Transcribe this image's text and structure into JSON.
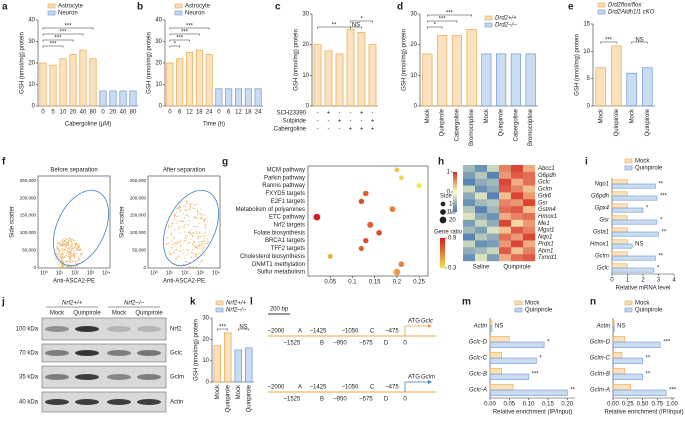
{
  "chart_data": [
    {
      "label": "a",
      "type": "bar",
      "ylabel": "GSH (nmol/mg) protein",
      "xlabel": "Cabergoline (μM)",
      "categories": [
        "0",
        "5",
        "10",
        "20",
        "40",
        "80",
        "0",
        "20",
        "40",
        "80"
      ],
      "series": [
        {
          "name": "Astrocyte",
          "color": "#f0a848",
          "values": [
            20,
            19,
            22,
            24,
            26,
            22,
            null,
            null,
            null,
            null
          ]
        },
        {
          "name": "Neuron",
          "color": "#6b9bd8",
          "values": [
            null,
            null,
            null,
            null,
            null,
            null,
            7,
            7,
            7,
            7
          ]
        }
      ],
      "ylim": [
        0,
        40
      ],
      "yticks": [
        0,
        10,
        20,
        30,
        40
      ],
      "legend": "upper left",
      "annotations": [
        "***",
        "***",
        "***",
        "***"
      ]
    },
    {
      "label": "b",
      "type": "bar",
      "ylabel": "GSH (nmol/mg) protein",
      "xlabel": "Time (h)",
      "categories": [
        "0",
        "6",
        "12",
        "18",
        "24",
        "0",
        "6",
        "12",
        "18",
        "24"
      ],
      "series": [
        {
          "name": "Astrocyte",
          "color": "#f0a848",
          "values": [
            20,
            22,
            25,
            26,
            24,
            null,
            null,
            null,
            null,
            null
          ]
        },
        {
          "name": "Neuron",
          "color": "#6b9bd8",
          "values": [
            null,
            null,
            null,
            null,
            null,
            8,
            8,
            8,
            8,
            8
          ]
        }
      ],
      "ylim": [
        0,
        40
      ],
      "yticks": [
        0,
        10,
        20,
        30,
        40
      ],
      "legend": "upper left",
      "annotations": [
        "*",
        "***",
        "***",
        "***"
      ]
    },
    {
      "label": "c",
      "type": "bar",
      "ylabel": "GSH (nmol/mg) protein",
      "series": [
        {
          "color": "#f0a848",
          "values": [
            20,
            18,
            17,
            25,
            24,
            20
          ]
        }
      ],
      "rows": [
        {
          "name": "SCH23390",
          "signs": [
            "-",
            "+",
            "-",
            "-",
            "+",
            "-"
          ]
        },
        {
          "name": "Sulpiride",
          "signs": [
            "-",
            "-",
            "+",
            "-",
            "-",
            "+"
          ]
        },
        {
          "name": "Cabergoline",
          "signs": [
            "-",
            "-",
            "-",
            "+",
            "+",
            "+"
          ]
        }
      ],
      "ylim": [
        0,
        30
      ],
      "yticks": [
        0,
        10,
        20,
        30
      ],
      "annotations": [
        "**",
        "NS",
        "*"
      ]
    },
    {
      "label": "d",
      "type": "bar",
      "ylabel": "GSH (nmol/mg) protein",
      "categories": [
        "Mock",
        "Quinpirole",
        "Cabergoline",
        "Bromocriptine",
        "Mock",
        "Quinpirole",
        "Cabergoline",
        "Bromocriptine"
      ],
      "series": [
        {
          "name": "Drd2+/+",
          "color": "#f0a848",
          "values": [
            17,
            23,
            23,
            25,
            null,
            null,
            null,
            null
          ]
        },
        {
          "name": "Drd2−/−",
          "color": "#6b9bd8",
          "values": [
            null,
            null,
            null,
            null,
            17,
            17,
            17,
            17
          ]
        }
      ],
      "ylim": [
        0,
        30
      ],
      "yticks": [
        0,
        10,
        20,
        30
      ],
      "legend": "upper right",
      "annotations": [
        "*",
        "***",
        "***"
      ]
    },
    {
      "label": "e",
      "type": "bar",
      "ylabel": "GSH (nmol/mg) protein",
      "categories": [
        "Mock",
        "Quinpirole",
        "Mock",
        "Quinpirole"
      ],
      "series": [
        {
          "name": "Drd2flox/flox",
          "color": "#f0a848",
          "values": [
            7,
            11,
            null,
            null
          ]
        },
        {
          "name": "Drd2Aldh1l1 cKO",
          "color": "#6b9bd8",
          "values": [
            null,
            null,
            6,
            7
          ]
        }
      ],
      "ylim": [
        0,
        15
      ],
      "yticks": [
        0,
        5,
        10,
        15
      ],
      "legend": "top",
      "annotations": [
        "***",
        "NS"
      ]
    },
    {
      "label": "g",
      "type": "bubble",
      "categories": [
        "MCM pathway",
        "Parkin pathway",
        "Rannis pathway",
        "FXYD5 targets",
        "E2F1 targets",
        "Metabolism of polyamines",
        "ETC pathway",
        "Nrf2 targets",
        "Folate biosynthesis",
        "BRCA1 targets",
        "TFF2 targets",
        "Cholesterol biosynthesis",
        "DNMT1 methylation",
        "Sulfur metabolism"
      ],
      "x": [
        0.2,
        0.21,
        0.25,
        0.13,
        0.12,
        0.19,
        0.02,
        0.14,
        0.16,
        0.13,
        0.12,
        0.05,
        0.21,
        0.2
      ],
      "sizes": [
        10,
        10,
        12,
        14,
        13,
        15,
        20,
        16,
        14,
        13,
        12,
        11,
        14,
        20
      ],
      "ratios": [
        0.4,
        0.35,
        0.3,
        0.7,
        0.75,
        0.6,
        0.9,
        0.7,
        0.75,
        0.75,
        0.7,
        0.45,
        0.6,
        0.5
      ],
      "xlim": [
        0,
        0.27
      ],
      "xticks": [
        0.05,
        0.1,
        0.15,
        0.2,
        0.25
      ],
      "size_title": "Size",
      "size_legend": [
        10,
        15,
        20
      ],
      "color_title": "Gene ratio",
      "color_ticks": [
        0.3,
        0.9
      ],
      "colors": [
        "#f2e35a",
        "#d7191c"
      ]
    },
    {
      "label": "h",
      "type": "heatmap",
      "rows": [
        "Abcc1",
        "G6pdh",
        "Gclc",
        "Gclm",
        "Grk6",
        "Gsr",
        "Gstm4",
        "Hmox1",
        "Me1",
        "Mgst1",
        "Nqo1",
        "Prdx1",
        "Atxn1",
        "Txnrd1"
      ],
      "column_groups": [
        "Saline",
        "Quinpirole"
      ],
      "values": [
        [
          -0.5,
          -0.8,
          -0.3,
          0.6,
          0.9,
          0.4
        ],
        [
          -0.7,
          -0.4,
          -0.9,
          0.5,
          0.8,
          0.7
        ],
        [
          -0.9,
          -0.6,
          -0.5,
          0.9,
          0.4,
          0.7
        ],
        [
          -0.3,
          -0.8,
          -0.6,
          0.8,
          0.6,
          0.3
        ],
        [
          -0.6,
          -0.2,
          -0.9,
          0.3,
          0.9,
          0.5
        ],
        [
          -0.8,
          -0.5,
          -0.4,
          0.6,
          0.5,
          0.9
        ],
        [
          -0.4,
          -0.9,
          -0.5,
          0.7,
          0.8,
          0.3
        ],
        [
          -0.2,
          -0.6,
          -0.8,
          0.4,
          0.6,
          0.7
        ],
        [
          -0.7,
          -0.3,
          -0.6,
          0.9,
          0.2,
          0.5
        ],
        [
          -0.5,
          -0.7,
          -0.2,
          0.3,
          0.8,
          0.6
        ],
        [
          -0.9,
          -0.4,
          -0.6,
          0.7,
          0.5,
          0.9
        ],
        [
          -0.3,
          -0.8,
          -0.7,
          0.5,
          0.9,
          0.4
        ],
        [
          -0.6,
          -0.5,
          -0.3,
          0.8,
          0.3,
          0.6
        ],
        [
          -0.8,
          -0.2,
          -0.7,
          0.4,
          0.7,
          0.8
        ]
      ],
      "color_ticks": [
        -1,
        0,
        1
      ],
      "colors": [
        "#4575b4",
        "#ffffbf",
        "#d73027"
      ]
    },
    {
      "label": "i",
      "type": "hbar",
      "xlabel": "Relative mRNA level",
      "categories": [
        "Nqo1",
        "G6pdh",
        "Gpx4",
        "Gsr",
        "Gsta1",
        "Hmox1",
        "Gclm",
        "Gclc"
      ],
      "series": [
        {
          "name": "Mock",
          "color": "#f0a848",
          "values": [
            1,
            1,
            1,
            1,
            1,
            1,
            1,
            1
          ]
        },
        {
          "name": "Quinpirole",
          "color": "#6b9bd8",
          "values": [
            2.8,
            2.9,
            2.0,
            2.9,
            3.0,
            1.3,
            2.8,
            2.7
          ]
        }
      ],
      "xlim": [
        0,
        4
      ],
      "xticks": [
        0,
        1,
        2,
        3,
        4
      ],
      "legend": "top",
      "annotations": [
        "**",
        "***",
        "*",
        "*",
        "**",
        "NS",
        "**",
        "*"
      ]
    },
    {
      "label": "k",
      "type": "bar",
      "ylabel": "GSH (nmol/mg) protein",
      "categories": [
        "Mock",
        "Quinpirole",
        "Mock",
        "Quinpirole"
      ],
      "series": [
        {
          "name": "Nrf2+/+",
          "color": "#f0a848",
          "values": [
            17,
            23,
            null,
            null
          ]
        },
        {
          "name": "Nrf2−/−",
          "color": "#6b9bd8",
          "values": [
            null,
            null,
            15,
            16
          ]
        }
      ],
      "ylim": [
        0,
        30
      ],
      "yticks": [
        0,
        10,
        20,
        30
      ],
      "legend": "top",
      "annotations": [
        "***",
        "NS"
      ]
    },
    {
      "label": "m",
      "type": "hbar",
      "xlabel": "Relative enrichment (IP/Input)",
      "categories": [
        "Actin",
        "Gclc-D",
        "Gclc-C",
        "Gclc-B",
        "Gclc-A"
      ],
      "series": [
        {
          "name": "Mock",
          "color": "#f0a848",
          "values": [
            0.005,
            0.05,
            0.03,
            0.03,
            0.06
          ]
        },
        {
          "name": "Quinpirole",
          "color": "#6b9bd8",
          "values": [
            0.005,
            0.14,
            0.12,
            0.1,
            0.2
          ]
        }
      ],
      "xlim": [
        0,
        0.22
      ],
      "xticks": [
        {
          "value": 0,
          "label": "0.00"
        },
        0.05,
        {
          "value": 0.1,
          "label": "0.10"
        },
        0.15,
        {
          "value": 0.2,
          "label": "0.20"
        }
      ],
      "legend": "top",
      "annotations": [
        "NS",
        "*",
        "*",
        "***",
        "**"
      ]
    },
    {
      "label": "n",
      "type": "hbar",
      "xlabel": "Relative enrichment (IP/Input)",
      "categories": [
        "Actin",
        "Gclm-D",
        "Gclm-C",
        "Gclm-B",
        "Gclm-A"
      ],
      "series": [
        {
          "name": "Mock",
          "color": "#f0a848",
          "values": [
            0.02,
            0.2,
            0.15,
            0.2,
            0.3
          ]
        },
        {
          "name": "Quinpirole",
          "color": "#6b9bd8",
          "values": [
            0.02,
            0.8,
            0.5,
            0.5,
            0.9
          ]
        }
      ],
      "xlim": [
        0,
        1.05
      ],
      "xticks": [
        {
          "value": 0,
          "label": "0.00"
        },
        0.25,
        {
          "value": 0.5,
          "label": "0.50"
        },
        0.75,
        {
          "value": 1,
          "label": "1.00"
        }
      ],
      "legend": "top",
      "annotations": [
        "NS",
        "***",
        "**",
        "**",
        "***"
      ]
    }
  ],
  "flow": {
    "label": "f",
    "plots": [
      "Before separation",
      "After separation"
    ],
    "ylabel": "Side scatter",
    "xlabel": "Anti-ASCA2-PE",
    "yticks": [
      "0",
      "50,000",
      "100,000",
      "150,000",
      "200,000",
      "250,000"
    ],
    "xticks": [
      "10⁰",
      "10¹",
      "10²",
      "10³",
      "10⁴"
    ]
  },
  "blot": {
    "label": "j",
    "groups": [
      "Nrf2+/+",
      "Nrf2−/−"
    ],
    "lanes": [
      "Mock",
      "Quinpirole",
      "Mock",
      "Quinpirole"
    ],
    "proteins": [
      "Nrf2",
      "Gclc",
      "Gclm",
      "Actin"
    ],
    "markers": [
      "100 kDa",
      "70 kDa",
      "35 kDa",
      "40 kDa"
    ]
  },
  "promoter": {
    "label": "l",
    "scale": "200 bp",
    "genes": [
      {
        "atg": "ATG",
        "name": "Gclc",
        "top": [
          "–2000",
          "A",
          "–1425",
          "–1050",
          "C",
          "–475"
        ],
        "bottom": [
          "–1525",
          "B",
          "–950",
          "–575",
          "D",
          "0"
        ]
      },
      {
        "atg": "ATG",
        "name": "Gclm",
        "top": [
          "–2000",
          "A",
          "–1425",
          "–1050",
          "C",
          "–475"
        ],
        "bottom": [
          "–1525",
          "B",
          "–950",
          "–575",
          "D",
          "0"
        ]
      }
    ]
  }
}
